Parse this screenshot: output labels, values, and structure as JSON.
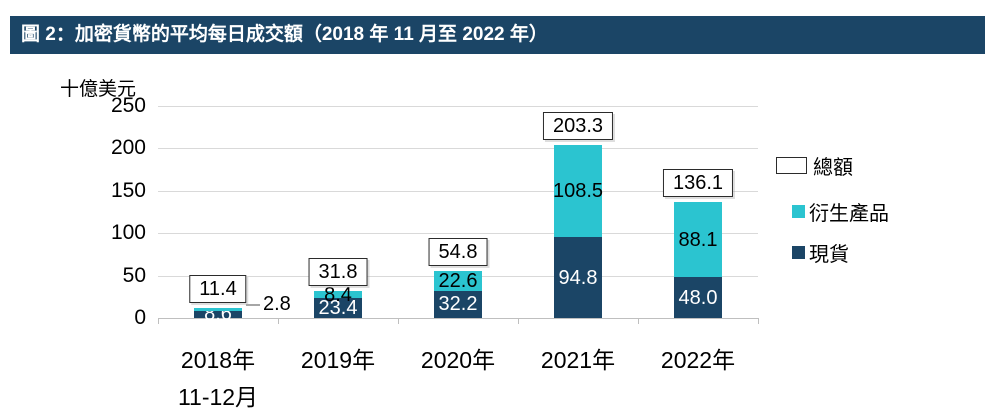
{
  "title_bar": {
    "text": "圖 2：加密貨幣的平均每日成交額（2018 年 11 月至 2022 年）",
    "bg_color": "#1B4566",
    "text_color": "#FFFFFF"
  },
  "chart_data": {
    "type": "bar",
    "stacked": true,
    "title": "圖 2：加密貨幣的平均每日成交額（2018 年 11 月至 2022 年）",
    "unit_label": "十億美元",
    "categories": [
      "2018年",
      "2019年",
      "2020年",
      "2021年",
      "2022年"
    ],
    "category_sublabels": [
      "11-12月",
      "",
      "",
      "",
      ""
    ],
    "series": [
      {
        "name": "現貨",
        "key": "spot",
        "color": "#1B4566",
        "label_color": "#FFFFFF",
        "values": [
          8.6,
          23.4,
          32.2,
          94.8,
          48.0
        ]
      },
      {
        "name": "衍生產品",
        "key": "derivatives",
        "color": "#2BC4D0",
        "label_color": "#000000",
        "values": [
          2.8,
          8.4,
          22.6,
          108.5,
          88.1
        ]
      }
    ],
    "totals": {
      "name": "總額",
      "values": [
        11.4,
        31.8,
        54.8,
        203.3,
        136.1
      ]
    },
    "y_ticks": [
      0,
      50,
      100,
      150,
      200,
      250
    ],
    "ylim": [
      0,
      250
    ],
    "grid": true,
    "legend_position": "right",
    "annotations": [
      {
        "category_index": 0,
        "series_key": "derivatives",
        "text": "2.8",
        "placement": "outside-right-with-leader-line"
      }
    ],
    "colors": {
      "grid": "#D9D9D9",
      "axis": "#BFBFBF",
      "leader_line": "#A6A6A6"
    }
  },
  "legend": {
    "items": [
      {
        "label": "總額",
        "swatch": "outlined-box",
        "color": "#FFFFFF",
        "border_color": "#2B2B2B"
      },
      {
        "label": "衍生產品",
        "swatch": "filled-square",
        "color": "#2BC4D0"
      },
      {
        "label": "現貨",
        "swatch": "filled-square",
        "color": "#1B4566"
      }
    ]
  }
}
